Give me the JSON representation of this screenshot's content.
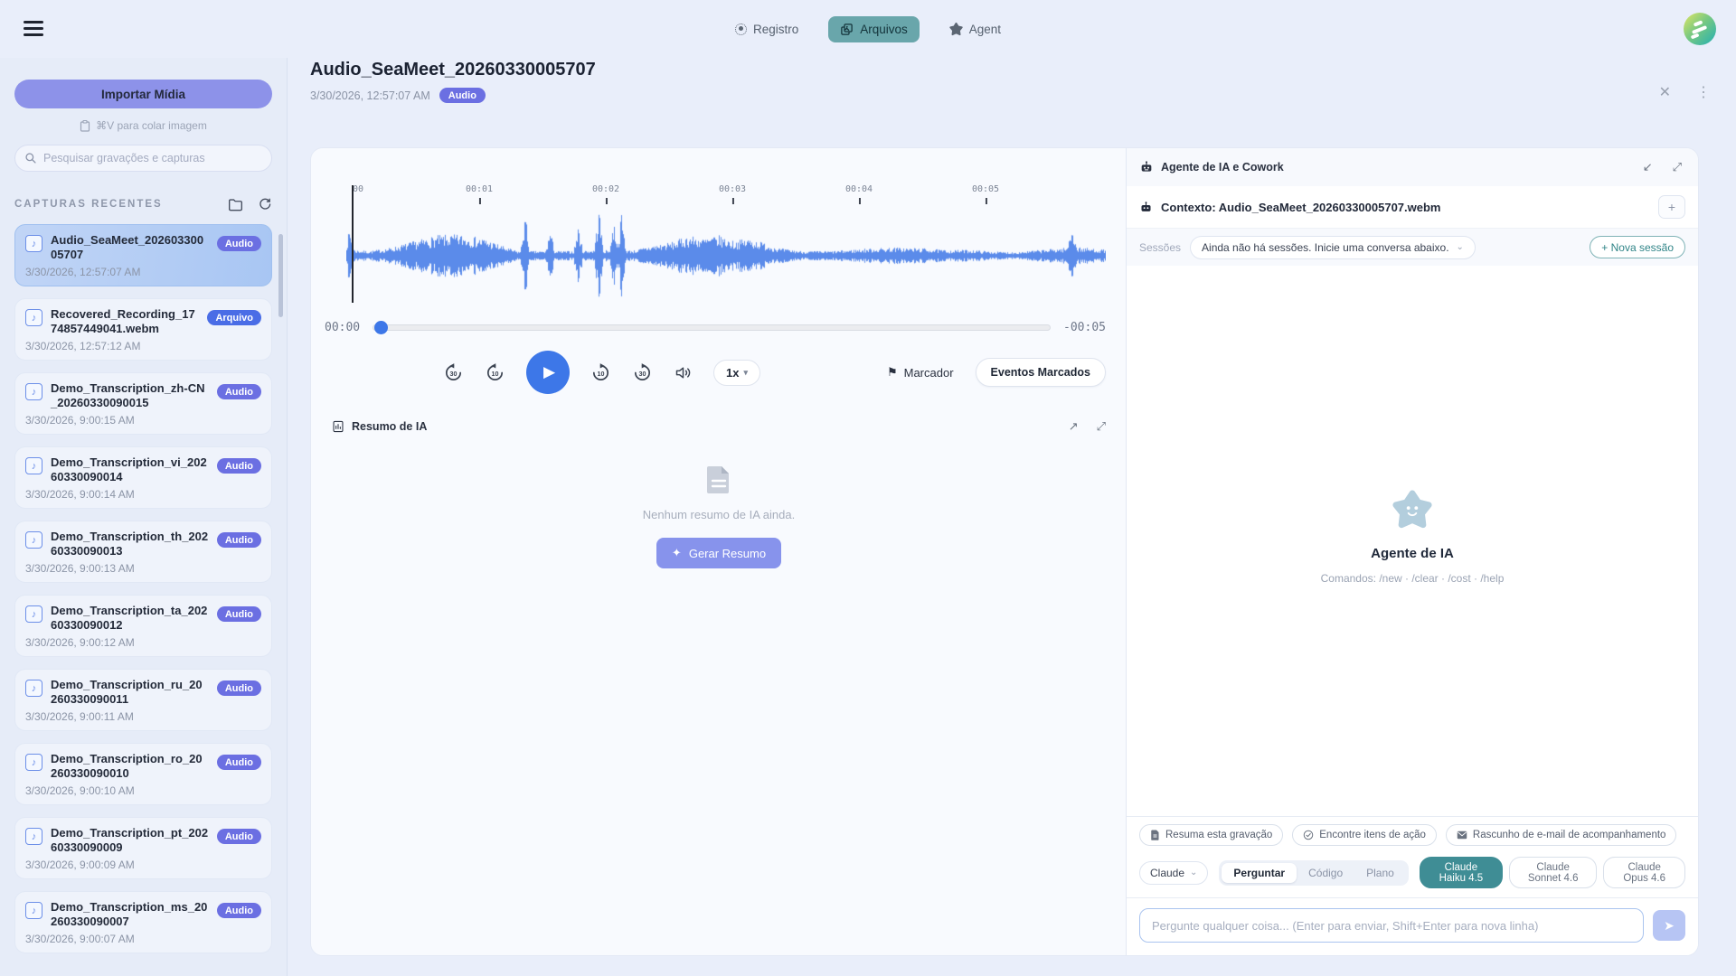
{
  "topbar": {
    "tabs": [
      {
        "label": "Registro"
      },
      {
        "label": "Arquivos"
      },
      {
        "label": "Agent"
      }
    ]
  },
  "sidebar": {
    "import_button": "Importar Mídia",
    "paste_hint": "⌘V para colar imagem",
    "search_placeholder": "Pesquisar gravações e capturas",
    "section_title": "CAPTURAS RECENTES",
    "items": [
      {
        "name": "Audio_SeaMeet_20260330005707",
        "badge": "Audio",
        "date": "3/30/2026, 12:57:07 AM",
        "selected": true
      },
      {
        "name": "Recovered_Recording_1774857449041.webm",
        "badge": "Arquivo",
        "date": "3/30/2026, 12:57:12 AM",
        "selected": false
      },
      {
        "name": "Demo_Transcription_zh-CN_20260330090015",
        "badge": "Audio",
        "date": "3/30/2026, 9:00:15 AM",
        "selected": false
      },
      {
        "name": "Demo_Transcription_vi_20260330090014",
        "badge": "Audio",
        "date": "3/30/2026, 9:00:14 AM",
        "selected": false
      },
      {
        "name": "Demo_Transcription_th_20260330090013",
        "badge": "Audio",
        "date": "3/30/2026, 9:00:13 AM",
        "selected": false
      },
      {
        "name": "Demo_Transcription_ta_20260330090012",
        "badge": "Audio",
        "date": "3/30/2026, 9:00:12 AM",
        "selected": false
      },
      {
        "name": "Demo_Transcription_ru_20260330090011",
        "badge": "Audio",
        "date": "3/30/2026, 9:00:11 AM",
        "selected": false
      },
      {
        "name": "Demo_Transcription_ro_20260330090010",
        "badge": "Audio",
        "date": "3/30/2026, 9:00:10 AM",
        "selected": false
      },
      {
        "name": "Demo_Transcription_pt_20260330090009",
        "badge": "Audio",
        "date": "3/30/2026, 9:00:09 AM",
        "selected": false
      },
      {
        "name": "Demo_Transcription_ms_20260330090007",
        "badge": "Audio",
        "date": "3/30/2026, 9:00:07 AM",
        "selected": false
      }
    ]
  },
  "main": {
    "title": "Audio_SeaMeet_20260330005707",
    "date": "3/30/2026, 12:57:07 AM",
    "badge": "Audio",
    "player": {
      "ruler": [
        "00",
        "00:01",
        "00:02",
        "00:03",
        "00:04",
        "00:05"
      ],
      "current_time": "00:00",
      "remaining_time": "-00:05",
      "skips": [
        "30",
        "10",
        "10",
        "30"
      ],
      "speed": "1x",
      "marker_label": "Marcador",
      "events_label": "Eventos Marcados"
    },
    "summary": {
      "title": "Resumo de IA",
      "empty_text": "Nenhum resumo de IA ainda.",
      "generate_label": "Gerar Resumo",
      "sparkle": "✦"
    }
  },
  "agent_panel": {
    "title": "Agente de IA e Cowork",
    "context": "Contexto: Audio_SeaMeet_20260330005707.webm",
    "add_context": "+",
    "sessions_label": "Sessões",
    "sessions_value": "Ainda não há sessões. Inicie uma conversa abaixo.",
    "new_session_label": "+ Nova sessão",
    "agent_name": "Agente de IA",
    "commands": "Comandos: /new · /clear · /cost · /help",
    "suggestions": [
      "Resuma esta gravação",
      "Encontre itens de ação",
      "Rascunho de e-mail de acompanhamento"
    ],
    "provider": "Claude",
    "modes": [
      "Perguntar",
      "Código",
      "Plano"
    ],
    "selected_mode": "Perguntar",
    "models": [
      "Claude Haiku 4.5",
      "Claude Sonnet 4.6",
      "Claude Opus 4.6"
    ],
    "selected_model": "Claude Haiku 4.5",
    "input_placeholder": "Pergunte qualquer coisa... (Enter para enviar, Shift+Enter para nova linha)"
  },
  "colors": {
    "accent_purple": "#8d92e9",
    "accent_blue": "#3d77e8",
    "waveform_blue": "#5b8bea",
    "teal_tab": "#69a6ab",
    "teal_model": "#3f8d95",
    "badge_audio": "#6b6fe2",
    "badge_arquivo": "#4a6de6"
  }
}
